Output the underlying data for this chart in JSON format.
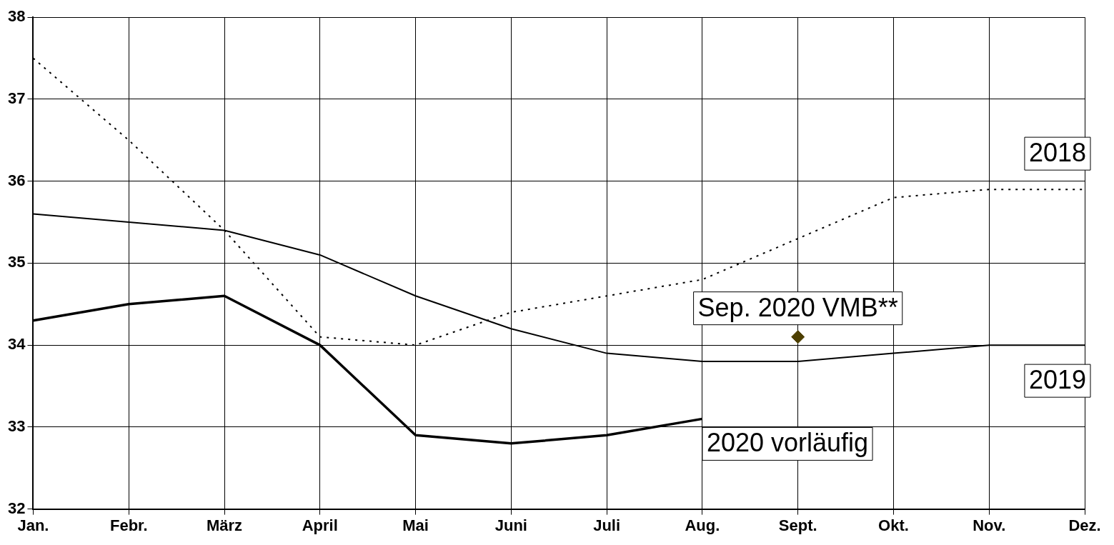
{
  "chart_data": {
    "type": "line",
    "categories": [
      "Jan.",
      "Febr.",
      "März",
      "April",
      "Mai",
      "Juni",
      "Juli",
      "Aug.",
      "Sept.",
      "Okt.",
      "Nov.",
      "Dez."
    ],
    "series": [
      {
        "name": "2018",
        "color": "#000000",
        "line_style": "dotted",
        "marker": "none",
        "values": [
          37.5,
          36.5,
          35.4,
          34.1,
          34.0,
          34.4,
          34.6,
          34.8,
          35.3,
          35.8,
          35.9,
          35.9
        ]
      },
      {
        "name": "2019",
        "color": "#000000",
        "line_style": "solid",
        "marker": "none",
        "values": [
          35.6,
          35.5,
          35.4,
          35.1,
          34.6,
          34.2,
          33.9,
          33.8,
          33.8,
          33.9,
          34.0,
          34.0
        ]
      },
      {
        "name": "2020 vorläufig",
        "color": "#000000",
        "line_style": "solid",
        "marker": "none",
        "values": [
          34.3,
          34.5,
          34.6,
          34.0,
          32.9,
          32.8,
          32.9,
          33.1,
          null,
          null,
          null,
          null
        ]
      },
      {
        "name": "Sep. 2020 VMB**",
        "type": "scatter",
        "color": "#4d3f00",
        "marker": "diamond",
        "x": [
          "Sept."
        ],
        "values": [
          34.1
        ]
      }
    ],
    "ylim": [
      32,
      38
    ],
    "yticks": [
      32,
      33,
      34,
      35,
      36,
      37,
      38
    ],
    "grid": true,
    "legend": false
  }
}
